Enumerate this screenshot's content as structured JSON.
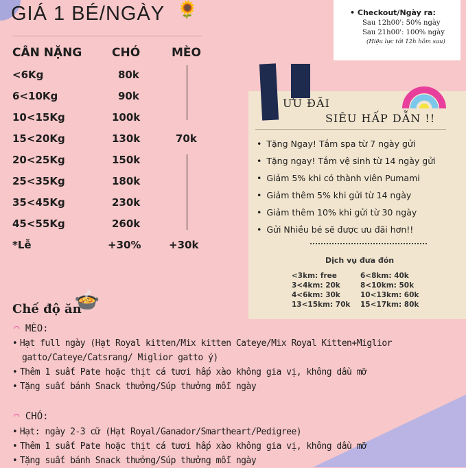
{
  "title": "GIÁ 1 BÉ/NGÀY",
  "price_table": {
    "headers": [
      "CÂN NẶNG",
      "CHÓ",
      "MÈO"
    ],
    "rows": [
      [
        "<6Kg",
        "80k"
      ],
      [
        "6<10Kg",
        "90k"
      ],
      [
        "10<15Kg",
        "100k"
      ],
      [
        "15<20Kg",
        "130k"
      ],
      [
        "20<25Kg",
        "150k"
      ],
      [
        "25<35Kg",
        "180k"
      ],
      [
        "35<45Kg",
        "230k"
      ],
      [
        "45<55Kg",
        "260k"
      ]
    ],
    "cat_price": "70k",
    "holiday": {
      "label": "*Lễ",
      "dog": "+30%",
      "cat": "+30k"
    }
  },
  "checkout": {
    "heading": "Checkout/Ngày ra:",
    "lines": [
      "Sau 12h00': 50% ngày",
      "Sau 21h00': 100% ngày"
    ],
    "note": "(Hiệu lực tới 12h hôm sau)"
  },
  "promo": {
    "title1": "ƯU ĐÃI",
    "title2": "SIÊU HẤP DẪN !!",
    "items": [
      "Tặng Ngay! Tắm spa từ 7 ngày gửi",
      "Tặng ngay! Tắm vệ sinh từ 14 ngày gửi",
      "Giảm 5% khi có thành viên Pumami",
      "Giảm thêm 5% khi gửi từ 14 ngày",
      "Giảm thêm 10% khi gửi từ 30 ngày",
      "Gửi Nhiều bé sẽ được ưu đãi hơn!!"
    ]
  },
  "pickup": {
    "title": "Dịch vụ đưa đón",
    "left": [
      "<3km: free",
      "3<4km: 20k",
      "4<6km: 30k",
      "13<15km: 70k"
    ],
    "right": [
      "6<8km: 40k",
      "8<10km: 50k",
      "10<13km: 60k",
      "15<17km: 80k"
    ]
  },
  "diet": {
    "title": "Chế độ ăn",
    "cat_label": "MÈO:",
    "cat_items": [
      "Hạt full ngày (Hạt Royal kitten/Mix kitten Cateye/Mix Royal Kitten+Miglior gatto/Cateye/Catsrang/ Miglior gatto ý)",
      "Thêm 1 suất Pate hoặc thịt cá tươi hấp xào không gia vị, không dầu mỡ",
      "Tặng suất bánh Snack thưởng/Súp thưởng mỗi ngày"
    ],
    "dog_label": "CHÓ:",
    "dog_items": [
      "Hạt: ngày 2-3 cữ (Hạt Royal/Ganador/Smartheart/Pedigree)",
      "Thêm 1 suất Pate hoặc thịt cá tươi hấp xào không gia vị, không dầu mỡ",
      "Tặng suất bánh Snack thưởng/Súp thưởng mỗi ngày"
    ]
  },
  "colors": {
    "background": "#f7c7c9",
    "cream": "#f1e5cf",
    "navy": "#1f2a4f",
    "rainbow_pink": "#e83f9c",
    "rainbow_blue": "#7cc8ec",
    "rainbow_yellow": "#f5e23c"
  }
}
